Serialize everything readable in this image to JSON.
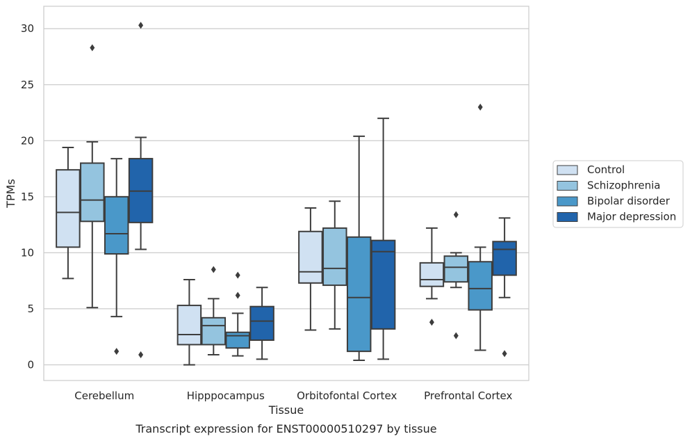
{
  "chart_data": {
    "type": "boxplot",
    "xlabel": "Tissue",
    "ylabel": "TPMs",
    "caption": "Transcript expression for ENST00000510297 by tissue",
    "ylim": [
      -1.4,
      32
    ],
    "yticks": [
      0,
      5,
      10,
      15,
      20,
      25,
      30
    ],
    "grid": "horizontal",
    "legend_placement": "right",
    "categories": [
      "Cerebellum",
      "Hipppocampus",
      "Orbitofontal Cortex",
      "Prefrontal Cortex"
    ],
    "series": [
      {
        "name": "Control",
        "color": "#d0e1f2",
        "boxes": [
          {
            "whisker_low": 7.7,
            "q1": 10.5,
            "median": 13.6,
            "q3": 17.4,
            "whisker_high": 19.4,
            "outliers": []
          },
          {
            "whisker_low": 0.0,
            "q1": 1.8,
            "median": 2.7,
            "q3": 5.3,
            "whisker_high": 7.6,
            "outliers": []
          },
          {
            "whisker_low": 3.1,
            "q1": 7.3,
            "median": 8.3,
            "q3": 11.9,
            "whisker_high": 14.0,
            "outliers": []
          },
          {
            "whisker_low": 5.9,
            "q1": 7.0,
            "median": 7.6,
            "q3": 9.1,
            "whisker_high": 12.2,
            "outliers": [
              3.8
            ]
          }
        ]
      },
      {
        "name": "Schizophrenia",
        "color": "#94c4df",
        "boxes": [
          {
            "whisker_low": 5.1,
            "q1": 12.8,
            "median": 14.7,
            "q3": 18.0,
            "whisker_high": 19.9,
            "outliers": [
              28.3
            ]
          },
          {
            "whisker_low": 0.9,
            "q1": 1.8,
            "median": 3.5,
            "q3": 4.2,
            "whisker_high": 5.9,
            "outliers": [
              8.5
            ]
          },
          {
            "whisker_low": 3.2,
            "q1": 7.1,
            "median": 8.6,
            "q3": 12.2,
            "whisker_high": 14.6,
            "outliers": []
          },
          {
            "whisker_low": 6.9,
            "q1": 7.4,
            "median": 8.7,
            "q3": 9.7,
            "whisker_high": 10.0,
            "outliers": [
              13.4,
              2.6
            ]
          }
        ]
      },
      {
        "name": "Bipolar disorder",
        "color": "#4a98c9",
        "boxes": [
          {
            "whisker_low": 4.3,
            "q1": 9.9,
            "median": 11.7,
            "q3": 15.0,
            "whisker_high": 18.4,
            "outliers": [
              1.2
            ]
          },
          {
            "whisker_low": 0.8,
            "q1": 1.5,
            "median": 2.6,
            "q3": 2.9,
            "whisker_high": 4.6,
            "outliers": [
              8.0,
              6.2
            ]
          },
          {
            "whisker_low": 0.4,
            "q1": 1.2,
            "median": 6.0,
            "q3": 11.4,
            "whisker_high": 20.4,
            "outliers": []
          },
          {
            "whisker_low": 1.3,
            "q1": 4.9,
            "median": 6.8,
            "q3": 9.2,
            "whisker_high": 10.5,
            "outliers": [
              23.0
            ]
          }
        ]
      },
      {
        "name": "Major depression",
        "color": "#2164ab",
        "boxes": [
          {
            "whisker_low": 10.3,
            "q1": 12.7,
            "median": 15.5,
            "q3": 18.4,
            "whisker_high": 20.3,
            "outliers": [
              30.3,
              0.9
            ]
          },
          {
            "whisker_low": 0.5,
            "q1": 2.2,
            "median": 3.9,
            "q3": 5.2,
            "whisker_high": 6.9,
            "outliers": []
          },
          {
            "whisker_low": 0.5,
            "q1": 3.2,
            "median": 10.1,
            "q3": 11.1,
            "whisker_high": 22.0,
            "outliers": []
          },
          {
            "whisker_low": 6.0,
            "q1": 8.0,
            "median": 10.3,
            "q3": 11.0,
            "whisker_high": 13.1,
            "outliers": [
              1.0
            ]
          }
        ]
      }
    ]
  }
}
